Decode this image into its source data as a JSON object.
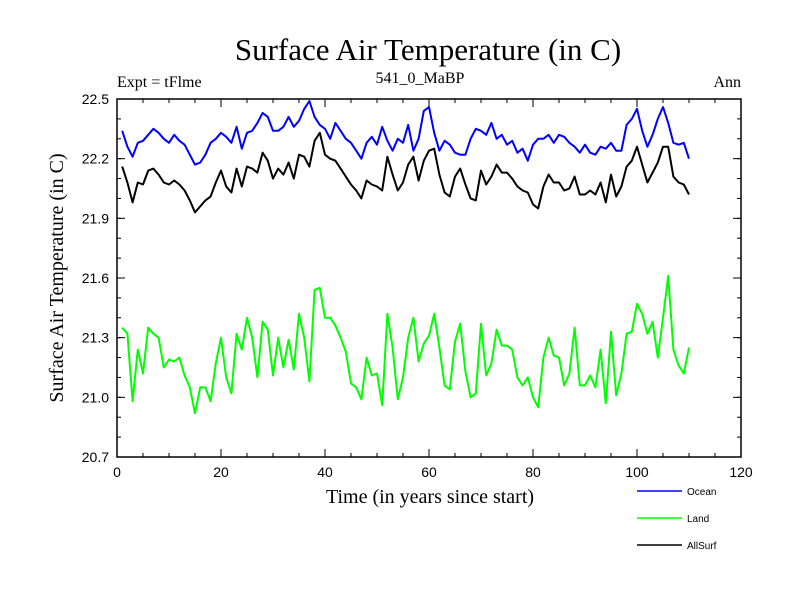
{
  "chart_data": {
    "type": "line",
    "title": "Surface Air Temperature (in C)",
    "subtitle": "541_0_MaBP",
    "left_annotation": "Expt = tFlme",
    "right_annotation": "Ann",
    "xlabel": "Time (in years since start)",
    "ylabel": "Surface Air Temperature (in C)",
    "xlim": [
      0,
      120
    ],
    "ylim": [
      20.7,
      22.5
    ],
    "xticks": [
      0,
      20,
      40,
      60,
      80,
      100,
      120
    ],
    "yticks": [
      20.7,
      21.0,
      21.3,
      21.6,
      21.9,
      22.2,
      22.5
    ],
    "xtick_labels": [
      "0",
      "20",
      "40",
      "60",
      "80",
      "100",
      "120"
    ],
    "ytick_labels": [
      "20.7",
      "21.0",
      "21.3",
      "21.6",
      "21.9",
      "22.2",
      "22.5"
    ],
    "x": [
      1,
      2,
      3,
      4,
      5,
      6,
      7,
      8,
      9,
      10,
      11,
      12,
      13,
      14,
      15,
      16,
      17,
      18,
      19,
      20,
      21,
      22,
      23,
      24,
      25,
      26,
      27,
      28,
      29,
      30,
      31,
      32,
      33,
      34,
      35,
      36,
      37,
      38,
      39,
      40,
      41,
      42,
      43,
      44,
      45,
      46,
      47,
      48,
      49,
      50,
      51,
      52,
      53,
      54,
      55,
      56,
      57,
      58,
      59,
      60,
      61,
      62,
      63,
      64,
      65,
      66,
      67,
      68,
      69,
      70,
      71,
      72,
      73,
      74,
      75,
      76,
      77,
      78,
      79,
      80,
      81,
      82,
      83,
      84,
      85,
      86,
      87,
      88,
      89,
      90,
      91,
      92,
      93,
      94,
      95,
      96,
      97,
      98,
      99,
      100,
      101,
      102,
      103,
      104,
      105,
      106,
      107,
      108,
      109,
      110
    ],
    "series": [
      {
        "name": "Ocean",
        "color": "#0000ff",
        "values": [
          22.34,
          22.26,
          22.21,
          22.28,
          22.29,
          22.32,
          22.35,
          22.33,
          22.3,
          22.28,
          22.32,
          22.29,
          22.27,
          22.22,
          22.17,
          22.18,
          22.22,
          22.28,
          22.3,
          22.33,
          22.31,
          22.28,
          22.36,
          22.25,
          22.33,
          22.34,
          22.38,
          22.43,
          22.41,
          22.34,
          22.34,
          22.36,
          22.41,
          22.36,
          22.39,
          22.45,
          22.49,
          22.41,
          22.37,
          22.35,
          22.3,
          22.38,
          22.34,
          22.3,
          22.28,
          22.24,
          22.2,
          22.28,
          22.31,
          22.27,
          22.36,
          22.29,
          22.24,
          22.3,
          22.28,
          22.37,
          22.24,
          22.3,
          22.44,
          22.46,
          22.33,
          22.24,
          22.29,
          22.27,
          22.23,
          22.22,
          22.22,
          22.3,
          22.35,
          22.34,
          22.32,
          22.38,
          22.3,
          22.32,
          22.27,
          22.29,
          22.23,
          22.25,
          22.19,
          22.27,
          22.3,
          22.3,
          22.32,
          22.28,
          22.32,
          22.31,
          22.28,
          22.26,
          22.23,
          22.27,
          22.23,
          22.22,
          22.26,
          22.25,
          22.28,
          22.24,
          22.24,
          22.37,
          22.4,
          22.45,
          22.34,
          22.26,
          22.32,
          22.4,
          22.46,
          22.38,
          22.28,
          22.27,
          22.28,
          22.2
        ]
      },
      {
        "name": "Land",
        "color": "#00ff00",
        "values": [
          21.35,
          21.32,
          20.98,
          21.24,
          21.12,
          21.35,
          21.32,
          21.3,
          21.15,
          21.19,
          21.18,
          21.2,
          21.11,
          21.05,
          20.92,
          21.05,
          21.05,
          20.98,
          21.17,
          21.3,
          21.1,
          21.02,
          21.32,
          21.24,
          21.4,
          21.3,
          21.1,
          21.38,
          21.34,
          21.11,
          21.3,
          21.15,
          21.29,
          21.14,
          21.42,
          21.3,
          21.08,
          21.54,
          21.55,
          21.4,
          21.4,
          21.36,
          21.3,
          21.23,
          21.07,
          21.05,
          20.99,
          21.2,
          21.11,
          21.12,
          20.96,
          21.42,
          21.25,
          20.99,
          21.1,
          21.3,
          21.4,
          21.18,
          21.27,
          21.31,
          21.42,
          21.25,
          21.06,
          21.04,
          21.28,
          21.37,
          21.13,
          21.0,
          21.02,
          21.37,
          21.11,
          21.17,
          21.34,
          21.26,
          21.26,
          21.24,
          21.1,
          21.06,
          21.1,
          21.0,
          20.95,
          21.2,
          21.3,
          21.21,
          21.2,
          21.06,
          21.12,
          21.35,
          21.06,
          21.06,
          21.11,
          21.05,
          21.24,
          20.97,
          21.33,
          21.01,
          21.12,
          21.32,
          21.33,
          21.47,
          21.42,
          21.32,
          21.38,
          21.2,
          21.4,
          21.61,
          21.24,
          21.16,
          21.12,
          21.25
        ]
      },
      {
        "name": "AllSurf",
        "color": "#000000",
        "values": [
          22.16,
          22.08,
          21.98,
          22.08,
          22.07,
          22.14,
          22.15,
          22.12,
          22.08,
          22.07,
          22.09,
          22.07,
          22.04,
          21.99,
          21.93,
          21.96,
          21.99,
          22.01,
          22.08,
          22.14,
          22.06,
          22.03,
          22.15,
          22.06,
          22.16,
          22.15,
          22.13,
          22.23,
          22.19,
          22.1,
          22.15,
          22.12,
          22.18,
          22.1,
          22.22,
          22.21,
          22.16,
          22.29,
          22.33,
          22.22,
          22.2,
          22.19,
          22.15,
          22.11,
          22.07,
          22.04,
          22.0,
          22.09,
          22.07,
          22.06,
          22.04,
          22.21,
          22.12,
          22.04,
          22.08,
          22.17,
          22.21,
          22.09,
          22.19,
          22.24,
          22.25,
          22.12,
          22.03,
          22.01,
          22.11,
          22.15,
          22.07,
          22.0,
          21.99,
          22.14,
          22.07,
          22.11,
          22.17,
          22.13,
          22.13,
          22.1,
          22.06,
          22.04,
          22.03,
          21.97,
          21.95,
          22.06,
          22.12,
          22.08,
          22.08,
          22.04,
          22.05,
          22.11,
          22.02,
          22.02,
          22.04,
          22.02,
          22.08,
          21.98,
          22.12,
          22.01,
          22.06,
          22.16,
          22.19,
          22.26,
          22.17,
          22.08,
          22.13,
          22.18,
          22.26,
          22.26,
          22.11,
          22.08,
          22.07,
          22.02
        ]
      }
    ],
    "legend": {
      "placement": "bottom-right",
      "entries": [
        "Ocean",
        "Land",
        "AllSurf"
      ]
    }
  }
}
